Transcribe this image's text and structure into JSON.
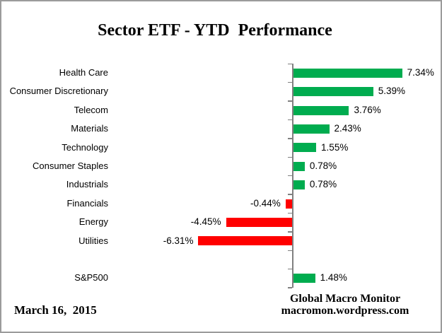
{
  "chart_data": {
    "type": "bar",
    "orientation": "horizontal",
    "title": "Sector ETF - YTD  Performance",
    "categories": [
      "Health Care",
      "Consumer Discretionary",
      "Telecom",
      "Materials",
      "Technology",
      "Consumer Staples",
      "Industrials",
      "Financials",
      "Energy",
      "Utilities",
      "",
      "S&P500"
    ],
    "values": [
      7.34,
      5.39,
      3.76,
      2.43,
      1.55,
      0.78,
      0.78,
      -0.44,
      -4.45,
      -6.31,
      null,
      1.48
    ],
    "value_labels": [
      "7.34%",
      "5.39%",
      "3.76%",
      "2.43%",
      "1.55%",
      "0.78%",
      "0.78%",
      "-0.44%",
      "-4.45%",
      "-6.31%",
      "",
      "1.48%"
    ],
    "xlim": [
      -7.5,
      9.5
    ],
    "grid": false,
    "legend": false,
    "bar_positive_color": "#00AC4F",
    "bar_negative_color": "#FF0000",
    "axis_color": "#808080"
  },
  "footer": {
    "date": "March 16,  2015",
    "brand": "Global Macro Monitor",
    "url": "macromon.wordpress.com"
  }
}
